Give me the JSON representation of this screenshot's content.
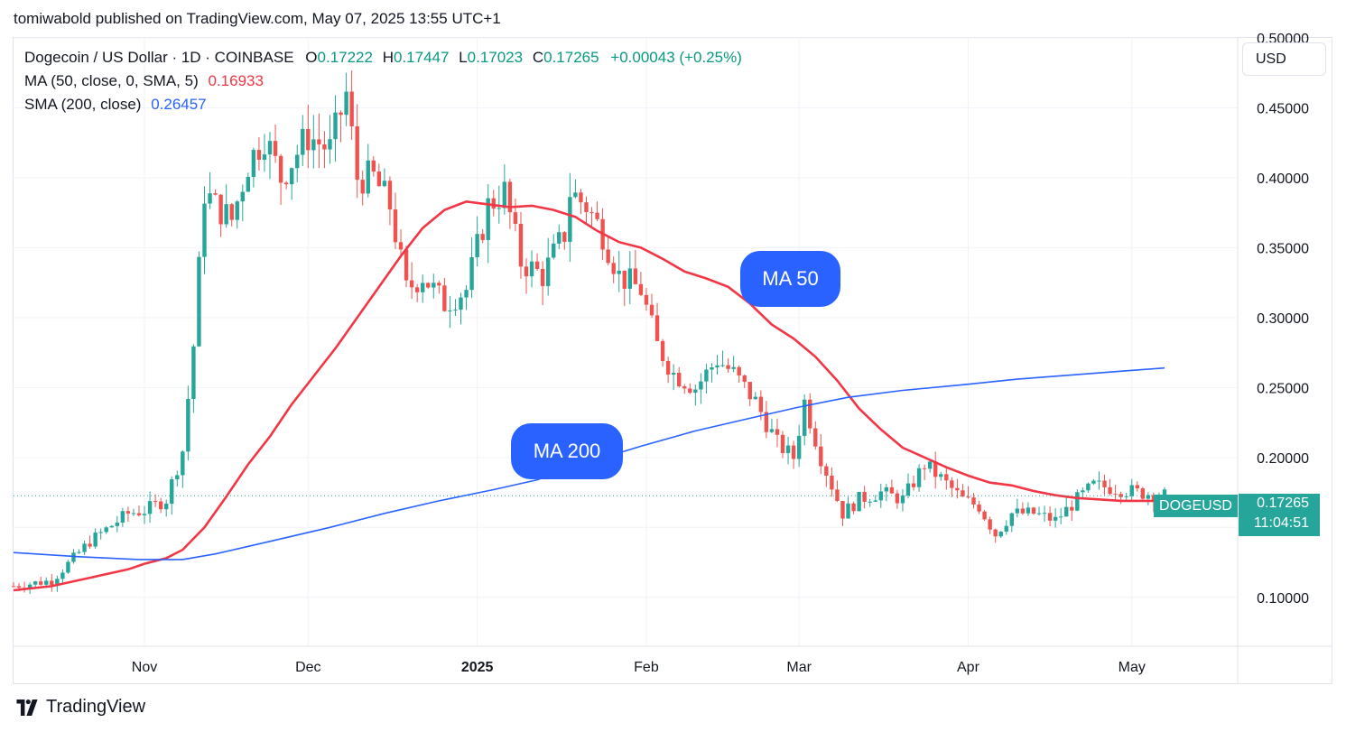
{
  "header": {
    "published": "tomiwabold published on TradingView.com, May 07, 2025 13:55 UTC+1"
  },
  "legend": {
    "symbol": "Dogecoin / US Dollar · 1D · COINBASE",
    "o_label": "O",
    "o_value": "0.17222",
    "h_label": "H",
    "h_value": "0.17447",
    "l_label": "L",
    "l_value": "0.17023",
    "c_label": "C",
    "c_value": "0.17265",
    "change": "+0.00043 (+0.25%)",
    "ma_label": "MA (50, close, 0, SMA, 5)",
    "ma_value": "0.16933",
    "sma_label": "SMA (200, close)",
    "sma_value": "0.26457"
  },
  "currency": "USD",
  "annotations": {
    "ma50": "MA 50",
    "ma200": "MA 200"
  },
  "price_badge": {
    "ticker": "DOGEUSD",
    "price": "0.17265",
    "countdown": "11:04:51"
  },
  "footer": {
    "brand": "TradingView"
  },
  "colors": {
    "up": "#26a69a",
    "down": "#ef5350",
    "ma50": "#f23645",
    "ma200": "#2962ff",
    "grid": "#f0f3fa"
  },
  "chart_data": {
    "type": "candlestick",
    "symbol": "DOGEUSD",
    "ylim": [
      0.065,
      0.5
    ],
    "y_ticks": [
      "0.10000",
      "0.15000",
      "0.20000",
      "0.25000",
      "0.30000",
      "0.35000",
      "0.40000",
      "0.45000",
      "0.50000"
    ],
    "x_ticks": [
      {
        "label": "Nov",
        "date": "2024-11-01",
        "bold": false
      },
      {
        "label": "Dec",
        "date": "2024-12-01",
        "bold": false
      },
      {
        "label": "2025",
        "date": "2025-01-01",
        "bold": true
      },
      {
        "label": "Feb",
        "date": "2025-02-01",
        "bold": false
      },
      {
        "label": "Mar",
        "date": "2025-03-01",
        "bold": false
      },
      {
        "label": "Apr",
        "date": "2025-04-01",
        "bold": false
      },
      {
        "label": "May",
        "date": "2025-05-01",
        "bold": false
      }
    ],
    "date_range": [
      "2024-10-08",
      "2025-05-07"
    ],
    "close_series": {
      "dates": [
        "2024-10-08",
        "2024-10-15",
        "2024-10-22",
        "2024-10-29",
        "2024-11-01",
        "2024-11-05",
        "2024-11-08",
        "2024-11-10",
        "2024-11-12",
        "2024-11-14",
        "2024-11-17",
        "2024-11-20",
        "2024-11-23",
        "2024-11-26",
        "2024-12-01",
        "2024-12-05",
        "2024-12-08",
        "2024-12-10",
        "2024-12-13",
        "2024-12-16",
        "2024-12-19",
        "2024-12-22",
        "2024-12-26",
        "2024-12-30",
        "2025-01-03",
        "2025-01-06",
        "2025-01-09",
        "2025-01-13",
        "2025-01-17",
        "2025-01-18",
        "2025-01-21",
        "2025-01-24",
        "2025-01-27",
        "2025-01-31",
        "2025-02-03",
        "2025-02-06",
        "2025-02-10",
        "2025-02-14",
        "2025-02-17",
        "2025-02-21",
        "2025-02-25",
        "2025-02-28",
        "2025-03-02",
        "2025-03-05",
        "2025-03-09",
        "2025-03-12",
        "2025-03-16",
        "2025-03-20",
        "2025-03-24",
        "2025-03-27",
        "2025-03-31",
        "2025-04-03",
        "2025-04-06",
        "2025-04-09",
        "2025-04-13",
        "2025-04-17",
        "2025-04-21",
        "2025-04-24",
        "2025-04-28",
        "2025-05-02",
        "2025-05-07"
      ],
      "close": [
        0.108,
        0.112,
        0.14,
        0.16,
        0.162,
        0.17,
        0.205,
        0.28,
        0.39,
        0.38,
        0.37,
        0.41,
        0.43,
        0.4,
        0.43,
        0.42,
        0.46,
        0.4,
        0.4,
        0.38,
        0.32,
        0.33,
        0.31,
        0.32,
        0.38,
        0.39,
        0.34,
        0.33,
        0.36,
        0.39,
        0.38,
        0.36,
        0.33,
        0.32,
        0.28,
        0.26,
        0.25,
        0.27,
        0.26,
        0.24,
        0.21,
        0.2,
        0.24,
        0.2,
        0.16,
        0.17,
        0.175,
        0.17,
        0.195,
        0.185,
        0.17,
        0.165,
        0.145,
        0.16,
        0.16,
        0.155,
        0.17,
        0.18,
        0.178,
        0.175,
        0.173
      ]
    },
    "series": [
      {
        "name": "MA (50, close, 0, SMA, 5)",
        "dates": [
          "2024-10-08",
          "2024-10-15",
          "2024-10-22",
          "2024-10-29",
          "2024-11-01",
          "2024-11-05",
          "2024-11-08",
          "2024-11-12",
          "2024-11-16",
          "2024-11-20",
          "2024-11-24",
          "2024-11-28",
          "2024-12-02",
          "2024-12-06",
          "2024-12-10",
          "2024-12-14",
          "2024-12-18",
          "2024-12-22",
          "2024-12-26",
          "2024-12-30",
          "2025-01-03",
          "2025-01-07",
          "2025-01-11",
          "2025-01-15",
          "2025-01-19",
          "2025-01-23",
          "2025-01-27",
          "2025-01-31",
          "2025-02-04",
          "2025-02-08",
          "2025-02-12",
          "2025-02-16",
          "2025-02-20",
          "2025-02-24",
          "2025-02-28",
          "2025-03-04",
          "2025-03-08",
          "2025-03-12",
          "2025-03-16",
          "2025-03-20",
          "2025-03-24",
          "2025-03-28",
          "2025-04-01",
          "2025-04-05",
          "2025-04-09",
          "2025-04-13",
          "2025-04-17",
          "2025-04-21",
          "2025-04-25",
          "2025-04-29",
          "2025-05-03",
          "2025-05-07"
        ],
        "values": [
          0.105,
          0.108,
          0.114,
          0.12,
          0.124,
          0.128,
          0.134,
          0.15,
          0.172,
          0.195,
          0.215,
          0.238,
          0.258,
          0.278,
          0.3,
          0.322,
          0.344,
          0.364,
          0.377,
          0.383,
          0.381,
          0.379,
          0.38,
          0.377,
          0.372,
          0.362,
          0.354,
          0.35,
          0.342,
          0.333,
          0.328,
          0.322,
          0.31,
          0.295,
          0.285,
          0.272,
          0.255,
          0.235,
          0.22,
          0.207,
          0.2,
          0.193,
          0.187,
          0.182,
          0.18,
          0.176,
          0.173,
          0.171,
          0.17,
          0.169,
          0.169,
          0.169
        ]
      },
      {
        "name": "SMA (200, close)",
        "dates": [
          "2024-10-08",
          "2024-10-20",
          "2024-10-31",
          "2024-11-08",
          "2024-11-14",
          "2024-11-24",
          "2024-12-05",
          "2024-12-15",
          "2024-12-25",
          "2025-01-04",
          "2025-01-12",
          "2025-01-20",
          "2025-01-31",
          "2025-02-10",
          "2025-02-20",
          "2025-03-01",
          "2025-03-10",
          "2025-03-20",
          "2025-03-31",
          "2025-04-10",
          "2025-04-20",
          "2025-04-30",
          "2025-05-07"
        ],
        "values": [
          0.132,
          0.129,
          0.127,
          0.127,
          0.131,
          0.14,
          0.15,
          0.16,
          0.169,
          0.177,
          0.184,
          0.195,
          0.208,
          0.219,
          0.228,
          0.236,
          0.243,
          0.248,
          0.252,
          0.256,
          0.259,
          0.262,
          0.264
        ]
      }
    ],
    "annotations": [
      "MA 50",
      "MA 200"
    ],
    "current_price": 0.17265
  }
}
